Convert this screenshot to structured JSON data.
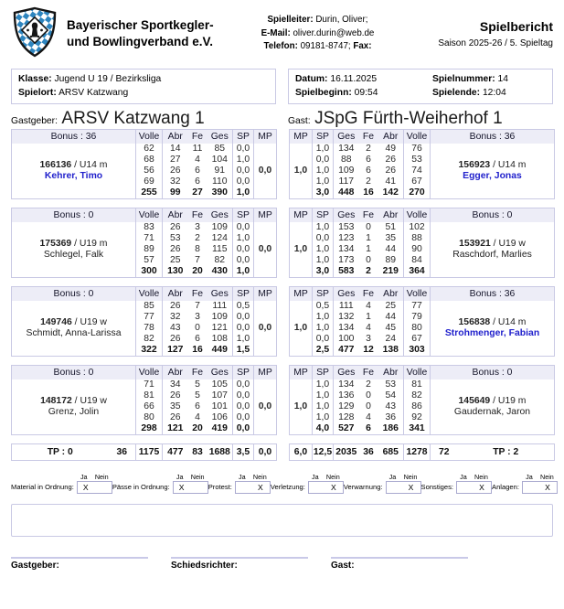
{
  "header": {
    "org_line1": "Bayerischer Sportkegler-",
    "org_line2": "und Bowlingverband e.V.",
    "contact": {
      "spielleiter_label": "Spielleiter:",
      "spielleiter": "Durin, Oliver;",
      "email_label": "E-Mail:",
      "email": "oliver.durin@web.de",
      "telefon_label": "Telefon:",
      "telefon": "09181-8747;",
      "fax_label": "Fax:"
    },
    "title": "Spielbericht",
    "subtitle": "Saison 2025-26 / 5. Spieltag"
  },
  "info": {
    "klasse_label": "Klasse:",
    "klasse": "Jugend U 19 / Bezirksliga",
    "spielort_label": "Spielort:",
    "spielort": "ARSV Katzwang",
    "datum_label": "Datum:",
    "datum": "16.11.2025",
    "spielnummer_label": "Spielnummer:",
    "spielnummer": "14",
    "spielbeginn_label": "Spielbeginn:",
    "spielbeginn": "09:54",
    "spielende_label": "Spielende:",
    "spielende": "12:04"
  },
  "teams": {
    "home_label": "Gastgeber:",
    "home_name": "ARSV Katzwang 1",
    "guest_label": "Gast:",
    "guest_name": "JSpG Fürth-Weiherhof 1"
  },
  "columns": {
    "home": [
      "Volle",
      "Abr",
      "Fe",
      "Ges",
      "SP",
      "MP"
    ],
    "guest": [
      "MP",
      "SP",
      "Ges",
      "Fe",
      "Abr",
      "Volle"
    ]
  },
  "blocks": [
    {
      "home": {
        "bonus": "Bonus : 36",
        "id": "166136",
        "cls": "/ U14 m",
        "name": "Kehrer, Timo",
        "name_blue": true,
        "mp": "0,0",
        "rows": [
          [
            "62",
            "14",
            "11",
            "85",
            "0,0"
          ],
          [
            "68",
            "27",
            "4",
            "104",
            "1,0"
          ],
          [
            "56",
            "26",
            "6",
            "91",
            "0,0"
          ],
          [
            "69",
            "32",
            "6",
            "110",
            "0,0"
          ]
        ],
        "total": [
          "255",
          "99",
          "27",
          "390",
          "1,0"
        ]
      },
      "guest": {
        "bonus": "Bonus : 36",
        "id": "156923",
        "cls": "/ U14 m",
        "name": "Egger, Jonas",
        "name_blue": true,
        "mp": "1,0",
        "rows": [
          [
            "1,0",
            "134",
            "2",
            "49",
            "76"
          ],
          [
            "0,0",
            "88",
            "6",
            "26",
            "53"
          ],
          [
            "1,0",
            "109",
            "6",
            "26",
            "74"
          ],
          [
            "1,0",
            "117",
            "2",
            "41",
            "67"
          ]
        ],
        "total": [
          "3,0",
          "448",
          "16",
          "142",
          "270"
        ]
      }
    },
    {
      "home": {
        "bonus": "Bonus : 0",
        "id": "175369",
        "cls": "/ U19 m",
        "name": "Schlegel, Falk",
        "name_blue": false,
        "mp": "0,0",
        "rows": [
          [
            "83",
            "26",
            "3",
            "109",
            "0,0"
          ],
          [
            "71",
            "53",
            "2",
            "124",
            "1,0"
          ],
          [
            "89",
            "26",
            "8",
            "115",
            "0,0"
          ],
          [
            "57",
            "25",
            "7",
            "82",
            "0,0"
          ]
        ],
        "total": [
          "300",
          "130",
          "20",
          "430",
          "1,0"
        ]
      },
      "guest": {
        "bonus": "Bonus : 0",
        "id": "153921",
        "cls": "/ U19 w",
        "name": "Raschdorf, Marlies",
        "name_blue": false,
        "mp": "1,0",
        "rows": [
          [
            "1,0",
            "153",
            "0",
            "51",
            "102"
          ],
          [
            "0,0",
            "123",
            "1",
            "35",
            "88"
          ],
          [
            "1,0",
            "134",
            "1",
            "44",
            "90"
          ],
          [
            "1,0",
            "173",
            "0",
            "89",
            "84"
          ]
        ],
        "total": [
          "3,0",
          "583",
          "2",
          "219",
          "364"
        ]
      }
    },
    {
      "home": {
        "bonus": "Bonus : 0",
        "id": "149746",
        "cls": "/ U19 w",
        "name": "Schmidt, Anna-Larissa",
        "name_blue": false,
        "mp": "0,0",
        "rows": [
          [
            "85",
            "26",
            "7",
            "111",
            "0,5"
          ],
          [
            "77",
            "32",
            "3",
            "109",
            "0,0"
          ],
          [
            "78",
            "43",
            "0",
            "121",
            "0,0"
          ],
          [
            "82",
            "26",
            "6",
            "108",
            "1,0"
          ]
        ],
        "total": [
          "322",
          "127",
          "16",
          "449",
          "1,5"
        ]
      },
      "guest": {
        "bonus": "Bonus : 36",
        "id": "156838",
        "cls": "/ U14 m",
        "name": "Strohmenger, Fabian",
        "name_blue": true,
        "mp": "1,0",
        "rows": [
          [
            "0,5",
            "111",
            "4",
            "25",
            "77"
          ],
          [
            "1,0",
            "132",
            "1",
            "44",
            "79"
          ],
          [
            "1,0",
            "134",
            "4",
            "45",
            "80"
          ],
          [
            "0,0",
            "100",
            "3",
            "24",
            "67"
          ]
        ],
        "total": [
          "2,5",
          "477",
          "12",
          "138",
          "303"
        ]
      }
    },
    {
      "home": {
        "bonus": "Bonus : 0",
        "id": "148172",
        "cls": "/ U19 w",
        "name": "Grenz, Jolin",
        "name_blue": false,
        "mp": "0,0",
        "rows": [
          [
            "71",
            "34",
            "5",
            "105",
            "0,0"
          ],
          [
            "81",
            "26",
            "5",
            "107",
            "0,0"
          ],
          [
            "66",
            "35",
            "6",
            "101",
            "0,0"
          ],
          [
            "80",
            "26",
            "4",
            "106",
            "0,0"
          ]
        ],
        "total": [
          "298",
          "121",
          "20",
          "419",
          "0,0"
        ]
      },
      "guest": {
        "bonus": "Bonus : 0",
        "id": "145649",
        "cls": "/ U19 m",
        "name": "Gaudernak, Jaron",
        "name_blue": false,
        "mp": "1,0",
        "rows": [
          [
            "1,0",
            "134",
            "2",
            "53",
            "81"
          ],
          [
            "1,0",
            "136",
            "0",
            "54",
            "82"
          ],
          [
            "1,0",
            "129",
            "0",
            "43",
            "86"
          ],
          [
            "1,0",
            "128",
            "4",
            "36",
            "92"
          ]
        ],
        "total": [
          "4,0",
          "527",
          "6",
          "186",
          "341"
        ]
      }
    }
  ],
  "totals": {
    "home": {
      "tp": "TP : 0",
      "bonus": "36",
      "volle": "1175",
      "abr": "477",
      "fe": "83",
      "ges": "1688",
      "sp": "3,5",
      "mp": "0,0"
    },
    "guest": {
      "mp": "6,0",
      "sp": "12,5",
      "ges": "2035",
      "fe": "36",
      "abr": "685",
      "volle": "1278",
      "bonus": "72",
      "tp": "TP : 2"
    }
  },
  "checks": {
    "ja": "Ja",
    "nein": "Nein",
    "mark": "X",
    "items": [
      {
        "label": "Material in Ordnung:",
        "answer": "ja"
      },
      {
        "label": "Pässe in Ordnung:",
        "answer": "ja"
      },
      {
        "label": "Protest:",
        "answer": "nein"
      },
      {
        "label": "Verletzung:",
        "answer": "nein"
      },
      {
        "label": "Verwarnung:",
        "answer": "nein"
      },
      {
        "label": "Sonstiges:",
        "answer": "nein"
      },
      {
        "label": "Anlagen:",
        "answer": "nein"
      }
    ]
  },
  "signatures": {
    "home_label": "Gastgeber:",
    "referee_label": "Schiedsrichter:",
    "guest_label": "Gast:"
  }
}
